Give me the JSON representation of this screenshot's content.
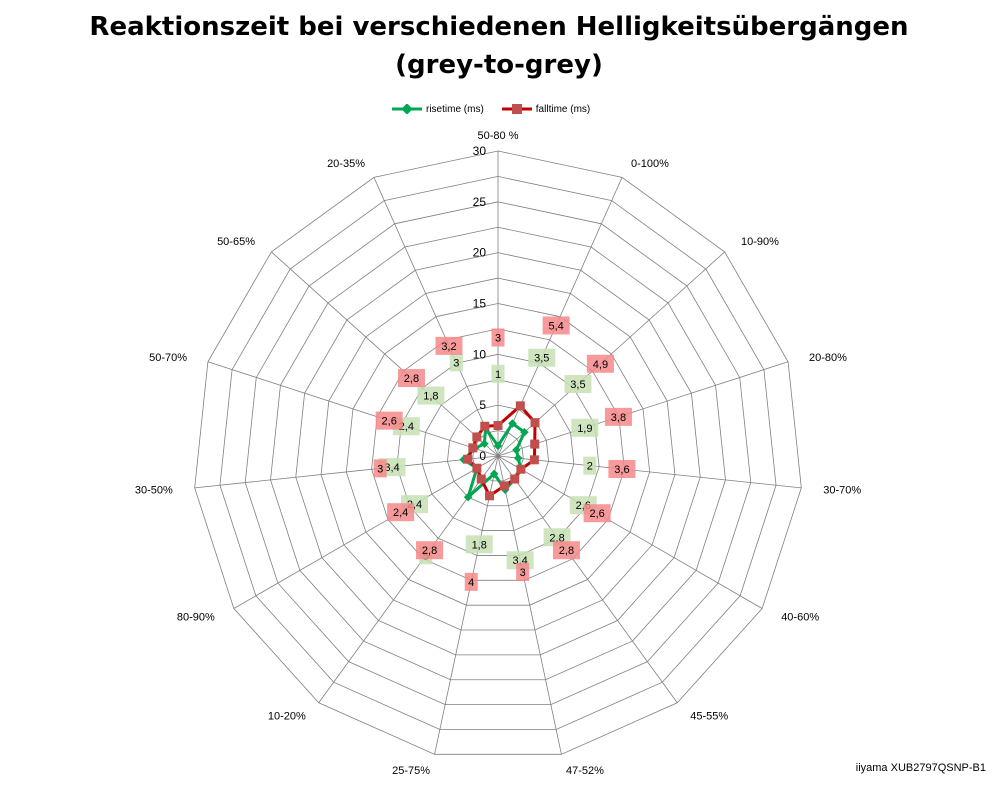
{
  "title_line1": "Reaktionszeit bei verschiedenen Helligkeitsübergängen",
  "title_line2": "(grey-to-grey)",
  "credit": "iiyama XUB2797QSNP-B1",
  "colors": {
    "risetime": "#00a651",
    "falltime": "#c00000",
    "rise_label_bg": "#c6e0b4",
    "fall_label_bg": "#f4888a",
    "grid": "#808080"
  },
  "chart_data": {
    "type": "radar",
    "title": "Reaktionszeit bei verschiedenen Helligkeitsübergängen (grey-to-grey)",
    "categories": [
      "50-80 %",
      "0-100%",
      "10-90%",
      "20-80%",
      "30-70%",
      "40-60%",
      "45-55%",
      "47-52%",
      "25-75%",
      "10-20%",
      "80-90%",
      "30-50%",
      "50-70%",
      "50-65%",
      "20-35%"
    ],
    "radial_ticks": [
      "0",
      "5",
      "10",
      "15",
      "20",
      "25",
      "30"
    ],
    "rlim": [
      0,
      30
    ],
    "grid": true,
    "legend_position": "top",
    "series": [
      {
        "name": "risetime (ms)",
        "values": [
          1,
          3.5,
          3.5,
          1.9,
          2,
          2.6,
          2.8,
          3.4,
          1.8,
          5,
          2.4,
          3.4,
          2.4,
          1.8,
          3
        ],
        "labels": [
          "1",
          "3,5",
          "3,5",
          "1,9",
          "2",
          "2,6",
          "2,8",
          "3,4",
          "1,8",
          "5",
          "2,4",
          "3,4",
          "2,4",
          "1,8",
          "3"
        ]
      },
      {
        "name": "falltime (ms)",
        "values": [
          3,
          5.4,
          4.9,
          3.8,
          3.6,
          2.6,
          2.8,
          3,
          4,
          2.8,
          2.4,
          3,
          2.6,
          2.8,
          3.2
        ],
        "labels": [
          "3",
          "5,4",
          "4,9",
          "3,8",
          "3,6",
          "2,6",
          "2,8",
          "3",
          "4",
          "2,8",
          "2,4",
          "3",
          "2,6",
          "2,8",
          "3,2"
        ]
      }
    ]
  }
}
